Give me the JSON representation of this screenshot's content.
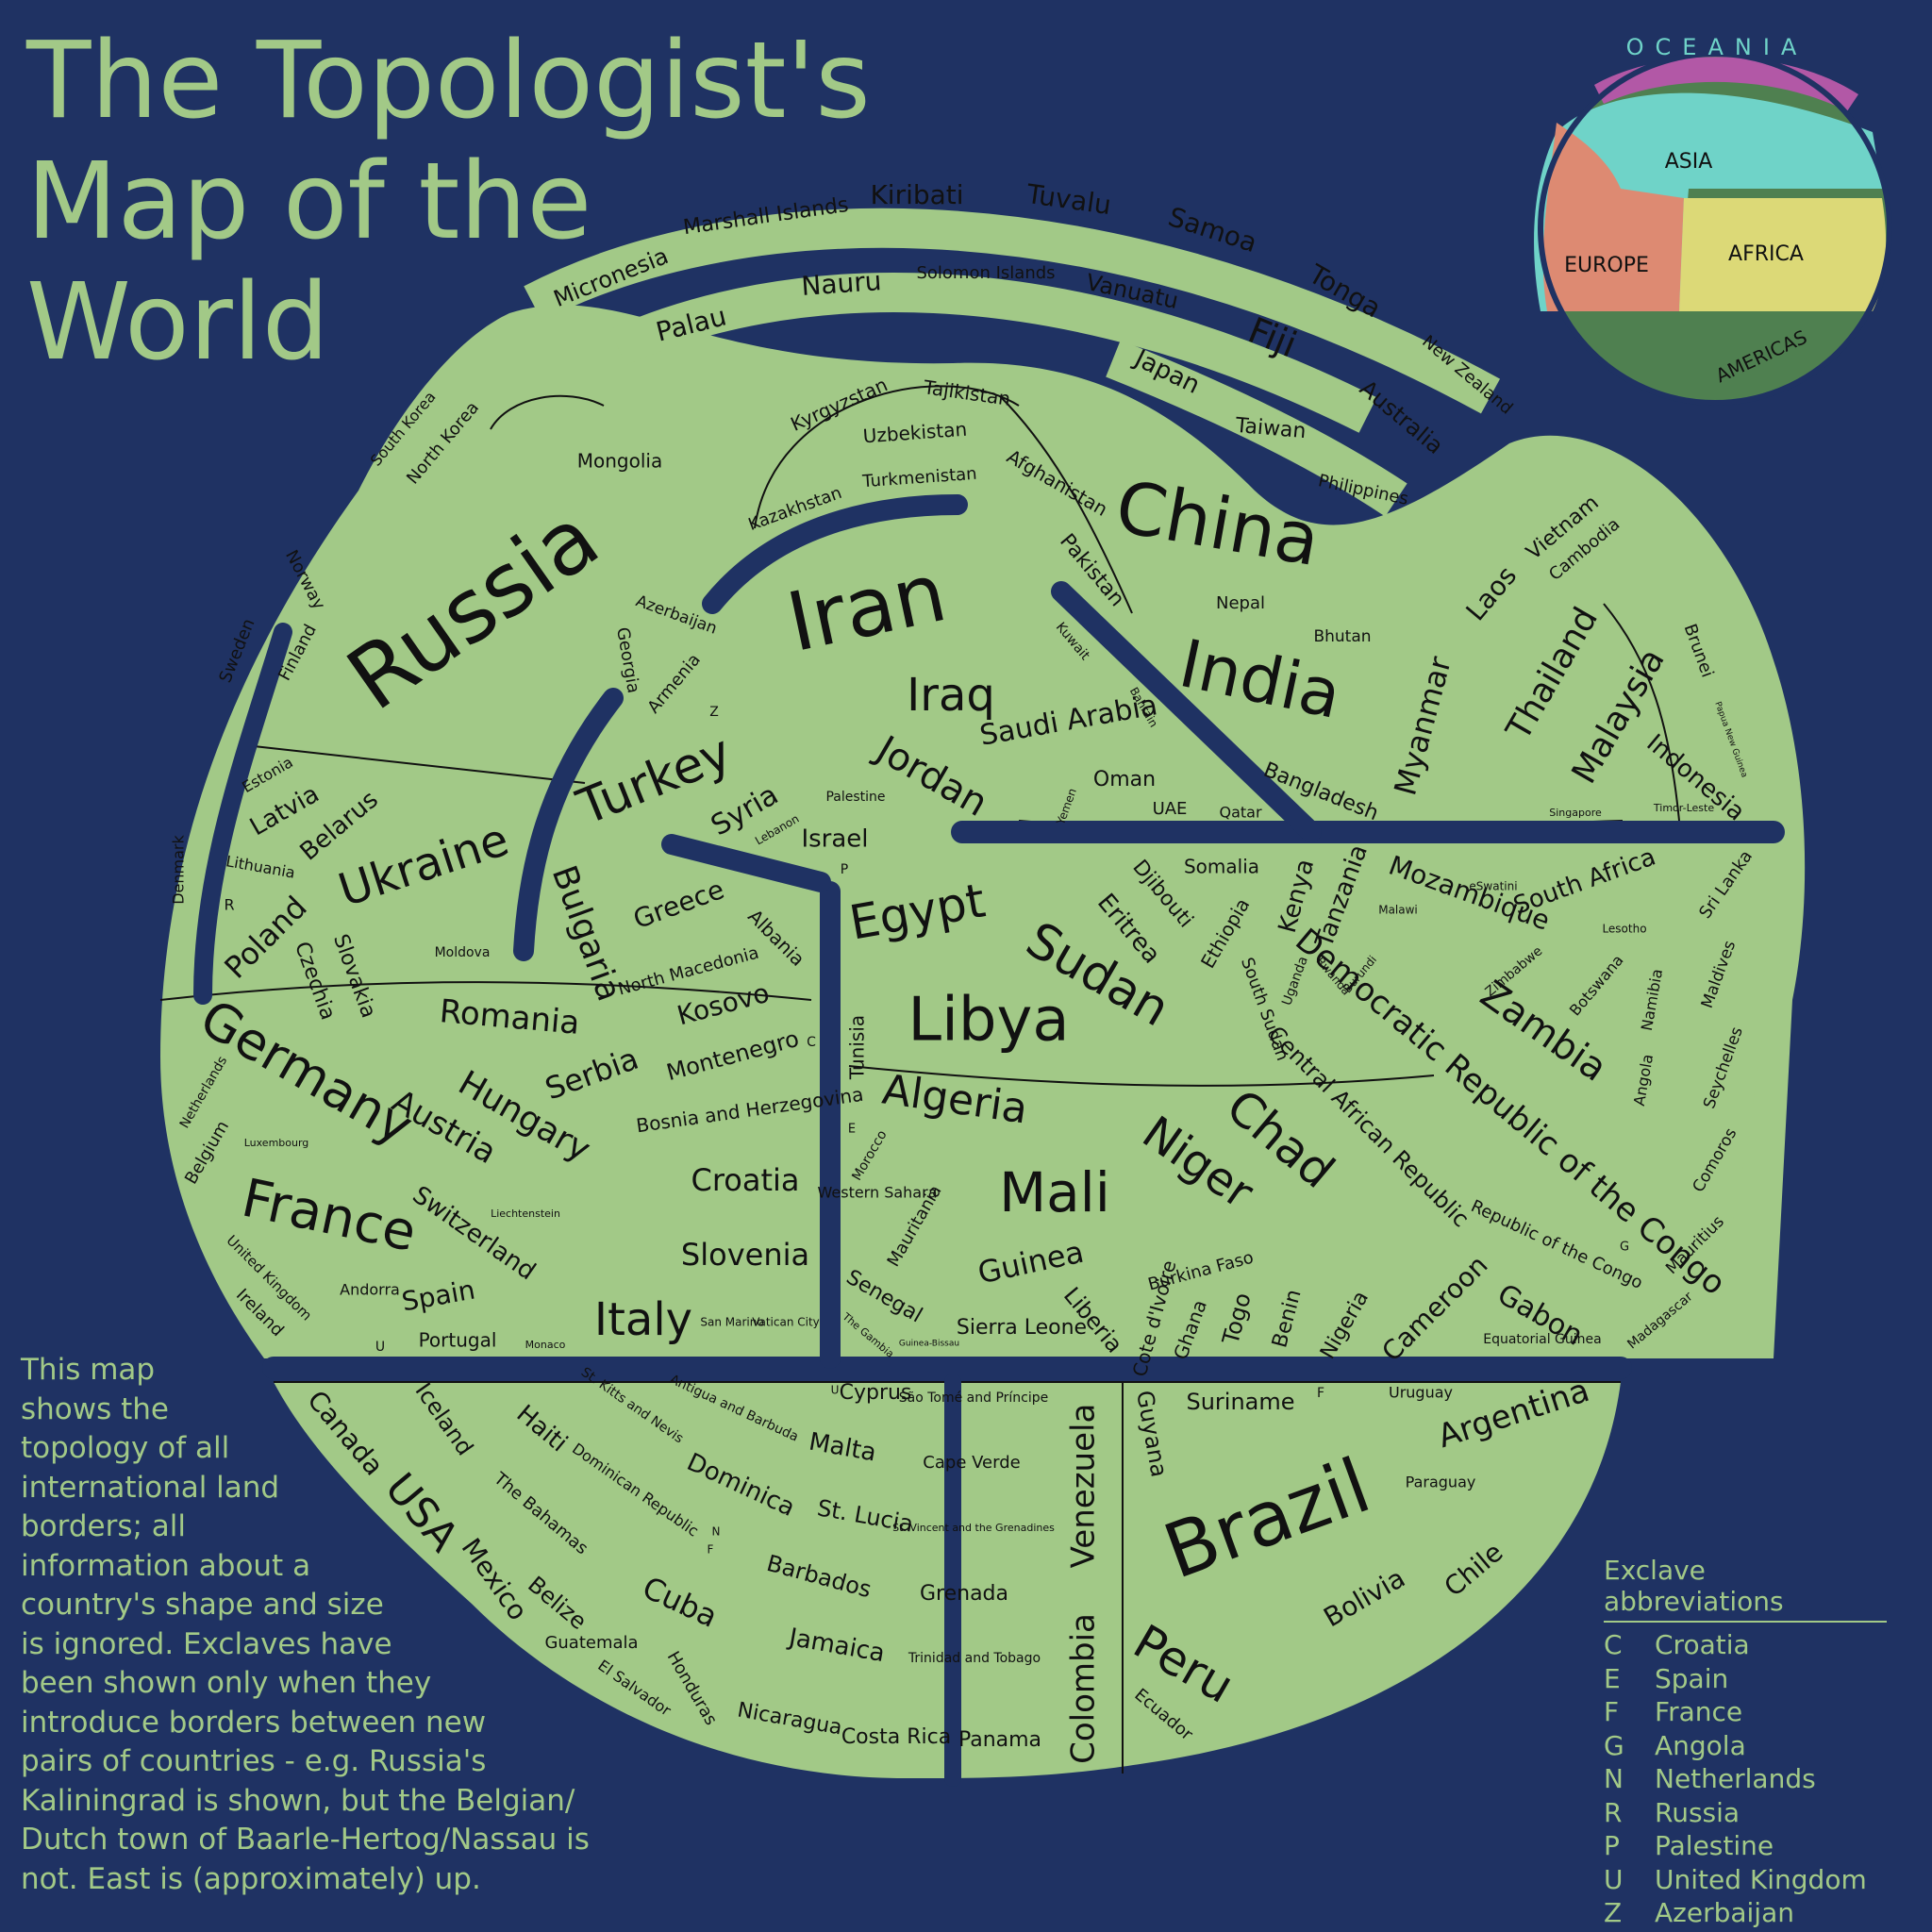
{
  "title": [
    "The Topologist's",
    "Map of the",
    "World"
  ],
  "description": [
    "This map",
    "shows the",
    "topology of all",
    "international land",
    "borders; all",
    "information about a",
    "country's shape and size",
    "is ignored. Exclaves have",
    "been shown only when they",
    "introduce borders between new",
    "pairs of countries - e.g. Russia's",
    "Kaliningrad is shown, but the Belgian/",
    "Dutch town of Baarle-Hertog/Nassau is",
    "not. East is (approximately) up."
  ],
  "legend": {
    "title": "Exclave abbreviations",
    "items": [
      {
        "k": "C",
        "v": "Croatia"
      },
      {
        "k": "E",
        "v": "Spain"
      },
      {
        "k": "F",
        "v": "France"
      },
      {
        "k": "G",
        "v": "Angola"
      },
      {
        "k": "N",
        "v": "Netherlands"
      },
      {
        "k": "R",
        "v": "Russia"
      },
      {
        "k": "P",
        "v": "Palestine"
      },
      {
        "k": "U",
        "v": "United Kingdom"
      },
      {
        "k": "Z",
        "v": "Azerbaijan"
      }
    ]
  },
  "inset": {
    "oceania": "OCEANIA",
    "asia": "ASIA",
    "europe": "EUROPE",
    "africa": "AFRICA",
    "americas": "AMERICAS"
  },
  "colors": {
    "background": "#1f3263",
    "land": "#a2c987",
    "border": "#111111",
    "europe": "#dd8a72",
    "asia": "#6fd3c8",
    "africa": "#dcd977",
    "americas": "#4f8050",
    "oceania": "#b258a6"
  },
  "countries": [
    [
      "Micronesia",
      648,
      295,
      24,
      -22
    ],
    [
      "Marshall Islands",
      812,
      230,
      22,
      -8
    ],
    [
      "Kiribati",
      972,
      208,
      28,
      0
    ],
    [
      "Tuvalu",
      1133,
      213,
      28,
      8
    ],
    [
      "Samoa",
      1285,
      245,
      28,
      18
    ],
    [
      "Tonga",
      1425,
      310,
      28,
      30
    ],
    [
      "New Zealand",
      1555,
      398,
      18,
      40
    ],
    [
      "Palau",
      733,
      345,
      28,
      -14
    ],
    [
      "Nauru",
      892,
      302,
      28,
      -4
    ],
    [
      "Solomon Islands",
      1045,
      290,
      18,
      0
    ],
    [
      "Vanuatu",
      1200,
      310,
      24,
      12
    ],
    [
      "Fiji",
      1348,
      360,
      38,
      22
    ],
    [
      "Australia",
      1485,
      443,
      24,
      40
    ],
    [
      "Japan",
      1237,
      395,
      26,
      26
    ],
    [
      "Taiwan",
      1347,
      455,
      22,
      5
    ],
    [
      "Philippines",
      1445,
      520,
      18,
      12
    ],
    [
      "Russia",
      505,
      650,
      92,
      -35
    ],
    [
      "China",
      1290,
      560,
      76,
      10
    ],
    [
      "Iran",
      920,
      650,
      86,
      -12
    ],
    [
      "India",
      1335,
      725,
      70,
      12
    ],
    [
      "Mongolia",
      657,
      490,
      20,
      0
    ],
    [
      "South Korea",
      428,
      455,
      16,
      -50
    ],
    [
      "North Korea",
      470,
      470,
      18,
      -50
    ],
    [
      "Kyrgyzstan",
      890,
      430,
      20,
      -24
    ],
    [
      "Tajikistan",
      1025,
      418,
      20,
      8
    ],
    [
      "Uzbekistan",
      970,
      460,
      20,
      -4
    ],
    [
      "Turkmenistan",
      975,
      507,
      18,
      -4
    ],
    [
      "Kazakhstan",
      843,
      540,
      18,
      -20
    ],
    [
      "Afghanistan",
      1120,
      513,
      20,
      30
    ],
    [
      "Pakistan",
      1157,
      605,
      22,
      50
    ],
    [
      "Nepal",
      1315,
      640,
      18,
      0
    ],
    [
      "Bhutan",
      1423,
      675,
      17,
      0
    ],
    [
      "Azerbaijan",
      717,
      652,
      17,
      20
    ],
    [
      "Georgia",
      665,
      700,
      18,
      80
    ],
    [
      "Armenia",
      715,
      725,
      18,
      -50
    ],
    [
      "Z",
      757,
      755,
      14,
      0
    ],
    [
      "Iraq",
      1008,
      740,
      48,
      0
    ],
    [
      "Kuwait",
      1137,
      680,
      14,
      50
    ],
    [
      "Saudi Arabia",
      1133,
      765,
      30,
      -10
    ],
    [
      "Bahrain",
      1212,
      750,
      12,
      60
    ],
    [
      "Oman",
      1192,
      827,
      22,
      0
    ],
    [
      "Yemen",
      1131,
      855,
      12,
      -70
    ],
    [
      "UAE",
      1240,
      858,
      18,
      0
    ],
    [
      "Qatar",
      1315,
      862,
      16,
      0
    ],
    [
      "Bangladesh",
      1400,
      840,
      22,
      22
    ],
    [
      "Myanmar",
      1510,
      770,
      32,
      -75
    ],
    [
      "Laos",
      1582,
      630,
      28,
      -50
    ],
    [
      "Vietnam",
      1657,
      560,
      22,
      -40
    ],
    [
      "Cambodia",
      1680,
      583,
      18,
      -40
    ],
    [
      "Thailand",
      1647,
      715,
      36,
      -60
    ],
    [
      "Malaysia",
      1717,
      760,
      36,
      -60
    ],
    [
      "Brunei",
      1800,
      690,
      18,
      70
    ],
    [
      "Papua New Guinea",
      1835,
      784,
      9,
      70
    ],
    [
      "Indonesia",
      1797,
      825,
      26,
      40
    ],
    [
      "Singapore",
      1670,
      862,
      11,
      0
    ],
    [
      "Timor-Leste",
      1785,
      857,
      11,
      0
    ],
    [
      "Turkey",
      695,
      830,
      52,
      -22
    ],
    [
      "Syria",
      790,
      860,
      30,
      -30
    ],
    [
      "Lebanon",
      824,
      880,
      12,
      -30
    ],
    [
      "Palestine",
      907,
      845,
      14,
      0
    ],
    [
      "Jordan",
      987,
      825,
      40,
      30
    ],
    [
      "Israel",
      885,
      890,
      26,
      0
    ],
    [
      "P",
      895,
      922,
      14,
      0
    ],
    [
      "Sweden",
      252,
      690,
      18,
      -68
    ],
    [
      "Norway",
      323,
      615,
      18,
      62
    ],
    [
      "Finland",
      316,
      692,
      18,
      -62
    ],
    [
      "Estonia",
      284,
      822,
      16,
      -30
    ],
    [
      "Latvia",
      302,
      860,
      26,
      -30
    ],
    [
      "Belarus",
      360,
      876,
      26,
      -40
    ],
    [
      "Lithuania",
      276,
      920,
      16,
      10
    ],
    [
      "Denmark",
      190,
      922,
      16,
      -90
    ],
    [
      "R",
      243,
      960,
      16,
      0
    ],
    [
      "Poland",
      283,
      995,
      32,
      -45
    ],
    [
      "Ukraine",
      450,
      920,
      48,
      -18
    ],
    [
      "Moldova",
      490,
      1010,
      14,
      0
    ],
    [
      "Czechia",
      333,
      1040,
      22,
      70
    ],
    [
      "Slovakia",
      375,
      1035,
      22,
      70
    ],
    [
      "Romania",
      540,
      1080,
      34,
      5
    ],
    [
      "Bulgaria",
      620,
      990,
      36,
      70
    ],
    [
      "Greece",
      720,
      960,
      28,
      -20
    ],
    [
      "Albania",
      822,
      995,
      20,
      45
    ],
    [
      "North Macedonia",
      730,
      1030,
      18,
      -15
    ],
    [
      "Kosovo",
      767,
      1066,
      28,
      -15
    ],
    [
      "Montenegro",
      777,
      1120,
      24,
      -15
    ],
    [
      "C",
      860,
      1105,
      14,
      0
    ],
    [
      "Bosnia and Herzegovina",
      795,
      1178,
      20,
      -8
    ],
    [
      "Croatia",
      790,
      1253,
      32,
      0
    ],
    [
      "Slovenia",
      790,
      1332,
      32,
      0
    ],
    [
      "Serbia",
      628,
      1140,
      32,
      -20
    ],
    [
      "Hungary",
      555,
      1185,
      36,
      30
    ],
    [
      "Austria",
      470,
      1196,
      34,
      30
    ],
    [
      "Switzerland",
      502,
      1308,
      26,
      35
    ],
    [
      "Liechtenstein",
      557,
      1287,
      11,
      0
    ],
    [
      "Germany",
      323,
      1140,
      54,
      30
    ],
    [
      "Netherlands",
      216,
      1158,
      14,
      -60
    ],
    [
      "Belgium",
      220,
      1222,
      18,
      -60
    ],
    [
      "Luxembourg",
      293,
      1212,
      11,
      0
    ],
    [
      "France",
      348,
      1292,
      56,
      12
    ],
    [
      "United Kingdom",
      285,
      1355,
      15,
      45
    ],
    [
      "Ireland",
      275,
      1392,
      18,
      45
    ],
    [
      "Andorra",
      392,
      1368,
      16,
      0
    ],
    [
      "Spain",
      465,
      1375,
      28,
      -10
    ],
    [
      "Portugal",
      485,
      1422,
      20,
      0
    ],
    [
      "U",
      403,
      1428,
      14,
      0
    ],
    [
      "Monaco",
      578,
      1426,
      11,
      0
    ],
    [
      "Italy",
      682,
      1402,
      48,
      0
    ],
    [
      "San Marino",
      776,
      1402,
      12,
      0
    ],
    [
      "Vatican City",
      833,
      1402,
      12,
      0
    ],
    [
      "Egypt",
      973,
      970,
      50,
      -10
    ],
    [
      "Libya",
      1048,
      1085,
      64,
      0
    ],
    [
      "Tunisia",
      910,
      1110,
      20,
      -90
    ],
    [
      "Algeria",
      1012,
      1168,
      44,
      8
    ],
    [
      "E",
      903,
      1197,
      13,
      0
    ],
    [
      "Morocco",
      922,
      1225,
      14,
      -60
    ],
    [
      "Western Sahara",
      930,
      1265,
      16,
      0
    ],
    [
      "Mauritania",
      970,
      1300,
      18,
      -60
    ],
    [
      "Mali",
      1118,
      1268,
      58,
      0
    ],
    [
      "Niger",
      1268,
      1235,
      48,
      35
    ],
    [
      "Chad",
      1355,
      1210,
      50,
      40
    ],
    [
      "Sudan",
      1162,
      1036,
      52,
      30
    ],
    [
      "Eritrea",
      1196,
      985,
      26,
      50
    ],
    [
      "Djibouti",
      1232,
      948,
      22,
      50
    ],
    [
      "Somalia",
      1295,
      920,
      20,
      0
    ],
    [
      "Ethiopia",
      1300,
      990,
      20,
      -60
    ],
    [
      "Kenya",
      1375,
      950,
      26,
      -75
    ],
    [
      "South Sudan",
      1340,
      1070,
      18,
      70
    ],
    [
      "Uganda",
      1373,
      1040,
      14,
      -70
    ],
    [
      "Rwanda",
      1413,
      1035,
      12,
      50
    ],
    [
      "Burundi",
      1442,
      1033,
      12,
      -50
    ],
    [
      "Tanzania",
      1423,
      950,
      26,
      -70
    ],
    [
      "Malawi",
      1482,
      965,
      12,
      0
    ],
    [
      "eSwatini",
      1583,
      940,
      12,
      0
    ],
    [
      "Mozambique",
      1557,
      948,
      28,
      20
    ],
    [
      "South Africa",
      1680,
      935,
      26,
      -20
    ],
    [
      "Lesotho",
      1722,
      985,
      12,
      0
    ],
    [
      "Zimbabwe",
      1605,
      1030,
      14,
      -40
    ],
    [
      "Botswana",
      1693,
      1045,
      16,
      -50
    ],
    [
      "Namibia",
      1752,
      1060,
      16,
      -80
    ],
    [
      "Angola",
      1743,
      1145,
      16,
      -80
    ],
    [
      "Zambia",
      1635,
      1095,
      40,
      35
    ],
    [
      "Democratic Republic of the Congo",
      1600,
      1180,
      34,
      40
    ],
    [
      "Central African Republic",
      1450,
      1195,
      24,
      45
    ],
    [
      "G",
      1722,
      1322,
      13,
      0
    ],
    [
      "Republic of the Congo",
      1650,
      1320,
      18,
      25
    ],
    [
      "Gabon",
      1632,
      1395,
      30,
      30
    ],
    [
      "Equatorial Guinea",
      1635,
      1420,
      14,
      0
    ],
    [
      "Cameroon",
      1522,
      1388,
      28,
      -45
    ],
    [
      "Nigeria",
      1426,
      1405,
      22,
      -60
    ],
    [
      "Benin",
      1365,
      1398,
      22,
      -75
    ],
    [
      "Togo",
      1312,
      1398,
      24,
      -75
    ],
    [
      "Ghana",
      1263,
      1410,
      20,
      -70
    ],
    [
      "Burkina Faso",
      1273,
      1348,
      18,
      -15
    ],
    [
      "Cote d'Ivoire",
      1225,
      1398,
      20,
      -75
    ],
    [
      "Liberia",
      1158,
      1400,
      24,
      50
    ],
    [
      "Sierra Leone",
      1083,
      1408,
      22,
      0
    ],
    [
      "Guinea",
      1093,
      1340,
      32,
      -12
    ],
    [
      "Senegal",
      937,
      1375,
      22,
      30
    ],
    [
      "The Gambia",
      920,
      1416,
      11,
      40
    ],
    [
      "Guinea-Bissau",
      985,
      1424,
      9,
      0
    ],
    [
      "Sri Lanka",
      1830,
      938,
      18,
      -55
    ],
    [
      "Maldives",
      1822,
      1033,
      17,
      -70
    ],
    [
      "Seychelles",
      1827,
      1132,
      17,
      -70
    ],
    [
      "Comoros",
      1818,
      1230,
      17,
      -60
    ],
    [
      "Mauritius",
      1797,
      1320,
      17,
      -45
    ],
    [
      "Madagascar",
      1760,
      1400,
      14,
      -40
    ],
    [
      "Canada",
      365,
      1520,
      28,
      50
    ],
    [
      "Iceland",
      470,
      1505,
      24,
      55
    ],
    [
      "Haiti",
      574,
      1515,
      26,
      40
    ],
    [
      "St. Kitts and Nevis",
      670,
      1490,
      14,
      35
    ],
    [
      "Antigua and Barbuda",
      778,
      1493,
      14,
      25
    ],
    [
      "U",
      885,
      1474,
      12,
      0
    ],
    [
      "Cyprus",
      928,
      1477,
      22,
      0
    ],
    [
      "São Tomé and Príncipe",
      1032,
      1482,
      14,
      0
    ],
    [
      "USA",
      445,
      1605,
      44,
      50
    ],
    [
      "The Bahamas",
      573,
      1605,
      18,
      40
    ],
    [
      "Dominican Republic",
      673,
      1580,
      16,
      35
    ],
    [
      "Dominica",
      785,
      1575,
      26,
      25
    ],
    [
      "Malta",
      893,
      1535,
      26,
      10
    ],
    [
      "Cape Verde",
      1030,
      1551,
      18,
      0
    ],
    [
      "N",
      759,
      1624,
      12,
      0
    ],
    [
      "F",
      753,
      1643,
      12,
      0
    ],
    [
      "St. Lucia",
      917,
      1608,
      24,
      10
    ],
    [
      "St. Vincent and the Grenadines",
      1032,
      1620,
      11,
      0
    ],
    [
      "Mexico",
      523,
      1675,
      28,
      55
    ],
    [
      "Belize",
      590,
      1700,
      24,
      40
    ],
    [
      "Barbados",
      868,
      1672,
      24,
      15
    ],
    [
      "Cuba",
      720,
      1700,
      32,
      25
    ],
    [
      "Grenada",
      1022,
      1690,
      22,
      0
    ],
    [
      "Guatemala",
      627,
      1742,
      18,
      0
    ],
    [
      "El Salvador",
      672,
      1790,
      16,
      35
    ],
    [
      "Honduras",
      733,
      1790,
      18,
      60
    ],
    [
      "Jamaica",
      887,
      1745,
      26,
      10
    ],
    [
      "Trinidad and Tobago",
      1033,
      1758,
      14,
      0
    ],
    [
      "Nicaragua",
      837,
      1823,
      22,
      10
    ],
    [
      "Costa Rica",
      950,
      1842,
      22,
      0
    ],
    [
      "Panama",
      1060,
      1845,
      22,
      0
    ],
    [
      "Venezuela",
      1150,
      1575,
      34,
      -90
    ],
    [
      "Colombia",
      1150,
      1790,
      34,
      -90
    ],
    [
      "Guyana",
      1220,
      1520,
      24,
      80
    ],
    [
      "Suriname",
      1315,
      1487,
      24,
      0
    ],
    [
      "F",
      1400,
      1477,
      14,
      0
    ],
    [
      "Uruguay",
      1506,
      1477,
      16,
      0
    ],
    [
      "Paraguay",
      1527,
      1572,
      16,
      0
    ],
    [
      "Argentina",
      1605,
      1500,
      34,
      -18
    ],
    [
      "Brazil",
      1345,
      1615,
      80,
      -20
    ],
    [
      "Bolivia",
      1447,
      1695,
      28,
      -30
    ],
    [
      "Chile",
      1563,
      1665,
      28,
      -40
    ],
    [
      "Peru",
      1253,
      1767,
      50,
      30
    ],
    [
      "Ecuador",
      1233,
      1818,
      18,
      40
    ]
  ]
}
